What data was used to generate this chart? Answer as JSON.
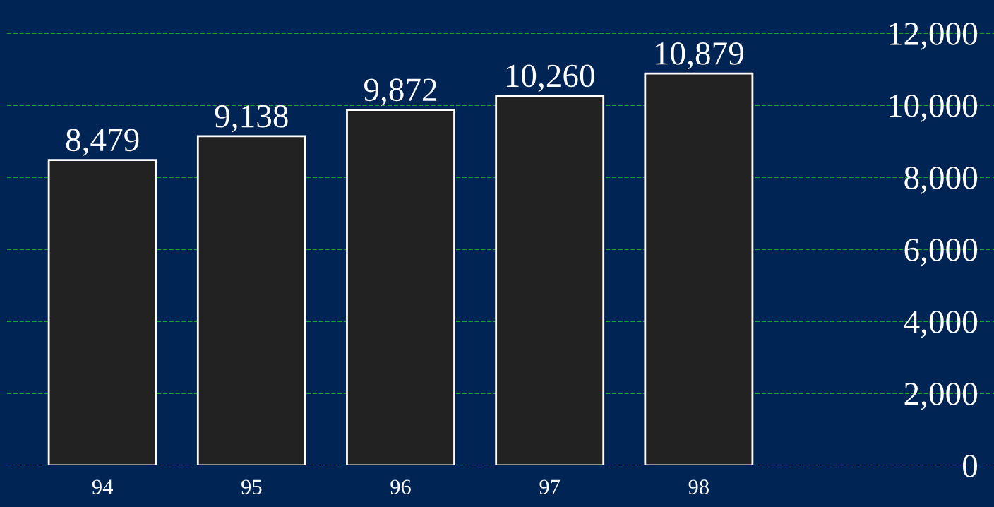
{
  "chart_data": {
    "type": "bar",
    "categories": [
      "94",
      "95",
      "96",
      "97",
      "98"
    ],
    "values": [
      8479,
      9138,
      9872,
      10260,
      10879
    ],
    "value_labels": [
      "8,479",
      "9,138",
      "9,872",
      "10,260",
      "10,879"
    ],
    "color": "#222222",
    "ylim": [
      0,
      12000
    ],
    "yticks": [
      0,
      {
        "value": 2000,
        "label": "2,000"
      },
      {
        "value": 4000,
        "label": "4,000"
      },
      {
        "value": 6000,
        "label": "6,000"
      },
      {
        "value": 8000,
        "label": "8,000"
      },
      {
        "value": 10000,
        "label": "10,000"
      },
      {
        "value": 12000,
        "label": "12,000"
      }
    ],
    "grid": "y",
    "line_style": "dashed"
  }
}
